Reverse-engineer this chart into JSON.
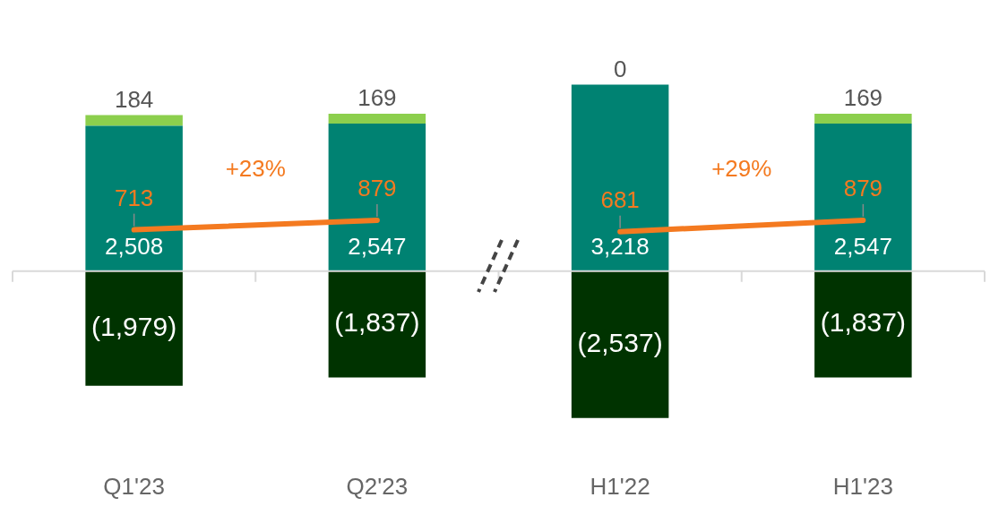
{
  "chart_data": {
    "type": "bar",
    "stacked": true,
    "categories": [
      "Q1'23",
      "Q2'23",
      "H1'22",
      "H1'23"
    ],
    "tick_labels": "x",
    "legend": false,
    "marker": "none",
    "series": [
      {
        "color": "#008272",
        "values": [
          2508,
          2547,
          3218,
          2547
        ],
        "value_labels": [
          "2,508",
          "2,547",
          "3,218",
          "2,547"
        ]
      },
      {
        "color": "#8ccf4d",
        "values": [
          184,
          169,
          0,
          169
        ],
        "value_labels": [
          "184",
          "169",
          "0",
          "169"
        ]
      },
      {
        "color": "#003300",
        "values": [
          -1979,
          -1837,
          -2537,
          -1837
        ],
        "value_labels": [
          "(1,979)",
          "(1,837)",
          "(2,537)",
          "(1,837)"
        ]
      },
      {
        "type": "line",
        "color": "#f47a20",
        "values": [
          713,
          879,
          null,
          null
        ],
        "value_labels": [
          "713",
          "879",
          null,
          null
        ]
      },
      {
        "type": "line",
        "color": "#f47a20",
        "values": [
          null,
          null,
          681,
          879
        ],
        "value_labels": [
          null,
          null,
          "681",
          "879"
        ]
      }
    ],
    "annotations": [
      "+23%",
      "+29%"
    ]
  }
}
